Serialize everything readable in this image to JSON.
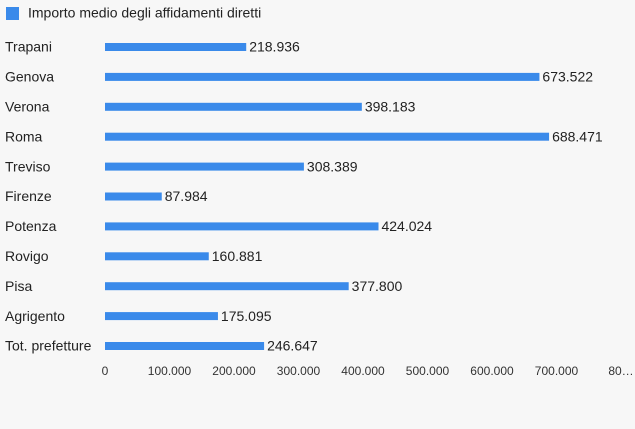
{
  "chart_data": {
    "type": "bar",
    "orientation": "horizontal",
    "categories": [
      "Trapani",
      "Genova",
      "Verona",
      "Roma",
      "Treviso",
      "Firenze",
      "Potenza",
      "Rovigo",
      "Pisa",
      "Agrigento",
      "Tot. prefetture"
    ],
    "series": [
      {
        "name": "Importo medio degli affidamenti diretti",
        "color": "#3a8aea",
        "values": [
          218936,
          673522,
          398183,
          688471,
          308389,
          87984,
          424024,
          160881,
          377800,
          175095,
          246647
        ],
        "value_labels": [
          "218.936",
          "673.522",
          "398.183",
          "688.471",
          "308.389",
          "87.984",
          "424.024",
          "160.881",
          "377.800",
          "175.095",
          "246.647"
        ]
      }
    ],
    "xlim": [
      0,
      800000
    ],
    "xticks": [
      0,
      {
        "value": 100000,
        "label": "100.000"
      },
      {
        "value": 200000,
        "label": "200.000"
      },
      {
        "value": 300000,
        "label": "300.000"
      },
      {
        "value": 400000,
        "label": "400.000"
      },
      {
        "value": 500000,
        "label": "500.000"
      },
      {
        "value": 600000,
        "label": "600.000"
      },
      {
        "value": 700000,
        "label": "700.000"
      },
      {
        "value": 800000,
        "label": "80…"
      }
    ],
    "legend": "top-left"
  }
}
